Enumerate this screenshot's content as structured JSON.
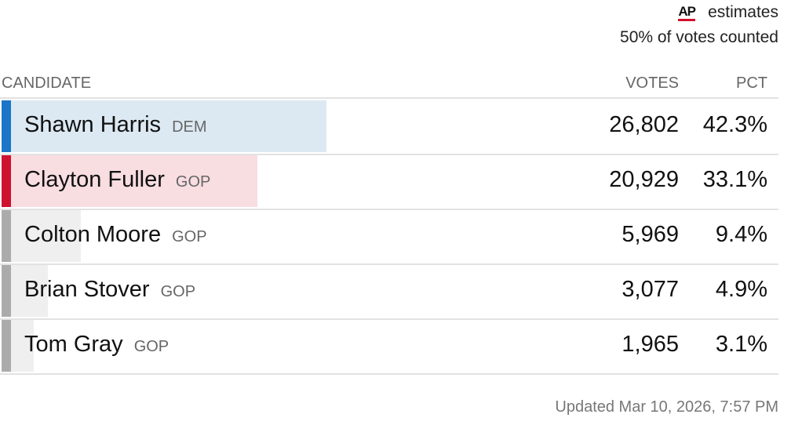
{
  "header": {
    "logo": "AP",
    "estimate_label": "estimates",
    "counted": "50% of votes counted"
  },
  "table": {
    "columns": [
      "CANDIDATE",
      "VOTES",
      "PCT"
    ],
    "pct_scale": [
      0,
      100
    ],
    "rows": [
      {
        "name": "Shawn Harris",
        "party": "DEM",
        "votes": "26,802",
        "pct": {
          "value": 42.3,
          "label": "42.3%"
        },
        "color": "#1b76c7",
        "bar_color": "#dce9f2"
      },
      {
        "name": "Clayton Fuller",
        "party": "GOP",
        "votes": "20,929",
        "pct": {
          "value": 33.1,
          "label": "33.1%"
        },
        "color": "#cf1130",
        "bar_color": "#f8dde1"
      },
      {
        "name": "Colton Moore",
        "party": "GOP",
        "votes": "5,969",
        "pct": {
          "value": 9.4,
          "label": "9.4%"
        },
        "color": "#ababab",
        "bar_color": "#efefef"
      },
      {
        "name": "Brian Stover",
        "party": "GOP",
        "votes": "3,077",
        "pct": {
          "value": 4.9,
          "label": "4.9%"
        },
        "color": "#ababab",
        "bar_color": "#efefef"
      },
      {
        "name": "Tom Gray",
        "party": "GOP",
        "votes": "1,965",
        "pct": {
          "value": 3.1,
          "label": "3.1%"
        },
        "color": "#ababab",
        "bar_color": "#efefef"
      }
    ]
  },
  "footer": {
    "updated": "Updated Mar 10, 2026, 7:57 PM"
  }
}
